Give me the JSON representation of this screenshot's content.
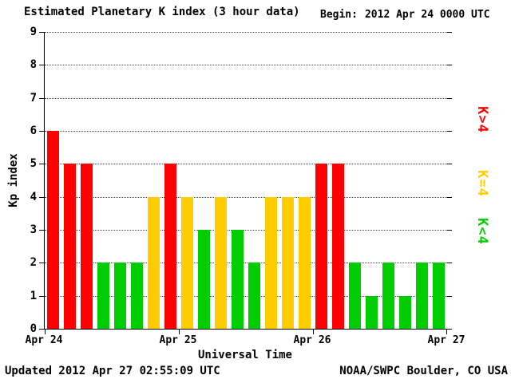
{
  "header": {
    "title": "Estimated Planetary K index (3 hour data)",
    "begin_label": "Begin:",
    "begin_value": "2012 Apr 24 0000 UTC"
  },
  "footer": {
    "updated": "Updated 2012 Apr 27 02:55:09 UTC",
    "source": "NOAA/SWPC Boulder, CO USA"
  },
  "chart_data": {
    "type": "bar",
    "title": "Estimated Planetary K index (3 hour data)",
    "xlabel": "Universal Time",
    "ylabel": "Kp index",
    "ylim": [
      0,
      9
    ],
    "y_ticks": [
      0,
      1,
      2,
      3,
      4,
      5,
      6,
      7,
      8,
      9
    ],
    "x_tick_labels": [
      "Apr 24",
      "Apr 25",
      "Apr 26",
      "Apr 27"
    ],
    "begin": "2012 Apr 24 0000 UTC",
    "bin_hours": 3,
    "values": [
      6,
      5,
      5,
      2,
      2,
      2,
      4,
      5,
      4,
      3,
      4,
      3,
      2,
      4,
      4,
      4,
      5,
      5,
      2,
      1,
      2,
      1,
      2,
      2
    ],
    "colors": {
      "low": "#00CC00",
      "mid": "#FFCC00",
      "high": "#FF0000"
    },
    "color_rule": "green K<4, yellow K=4, red K>4",
    "legend": [
      {
        "label": "K>4",
        "color": "#FF0000"
      },
      {
        "label": "K=4",
        "color": "#FFCC00"
      },
      {
        "label": "K<4",
        "color": "#00CC00"
      }
    ],
    "grid": "dotted-horizontal",
    "legend_position": "right-rotated"
  }
}
